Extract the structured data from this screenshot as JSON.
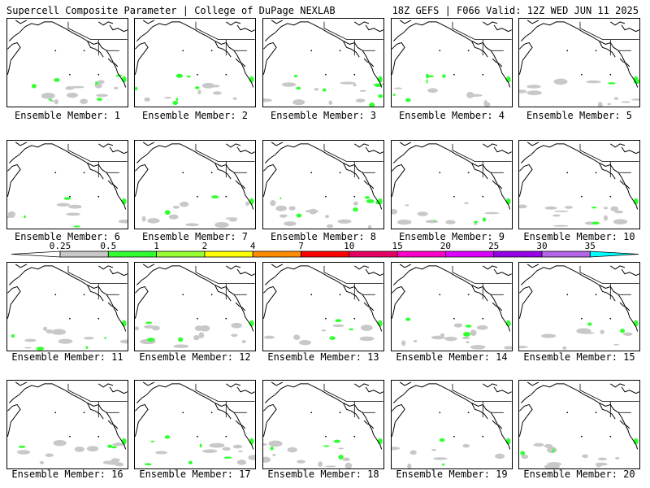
{
  "header": {
    "left_title": "Supercell Composite Parameter | College of DuPage NEXLAB",
    "right_title": "18Z GEFS | F066 Valid: 12Z WED JUN 11 2025"
  },
  "colorbar": {
    "labels": [
      "0.25",
      "0.5",
      "1",
      "2",
      "4",
      "7",
      "10",
      "15",
      "20",
      "25",
      "30",
      "35"
    ],
    "colors": [
      "#c8c8c8",
      "#32ff32",
      "#96ff32",
      "#ffff00",
      "#ff8c00",
      "#ff0000",
      "#e60064",
      "#ff00c8",
      "#dc00ff",
      "#9600e6",
      "#b464e6",
      "#00ffff"
    ]
  },
  "members": [
    {
      "label": "Ensemble Member: 1"
    },
    {
      "label": "Ensemble Member: 2"
    },
    {
      "label": "Ensemble Member: 3"
    },
    {
      "label": "Ensemble Member: 4"
    },
    {
      "label": "Ensemble Member: 5"
    },
    {
      "label": "Ensemble Member: 6"
    },
    {
      "label": "Ensemble Member: 7"
    },
    {
      "label": "Ensemble Member: 8"
    },
    {
      "label": "Ensemble Member: 9"
    },
    {
      "label": "Ensemble Member: 10"
    },
    {
      "label": "Ensemble Member: 11"
    },
    {
      "label": "Ensemble Member: 12"
    },
    {
      "label": "Ensemble Member: 13"
    },
    {
      "label": "Ensemble Member: 14"
    },
    {
      "label": "Ensemble Member: 15"
    },
    {
      "label": "Ensemble Member: 16"
    },
    {
      "label": "Ensemble Member: 17"
    },
    {
      "label": "Ensemble Member: 18"
    },
    {
      "label": "Ensemble Member: 19"
    },
    {
      "label": "Ensemble Member: 20"
    }
  ]
}
